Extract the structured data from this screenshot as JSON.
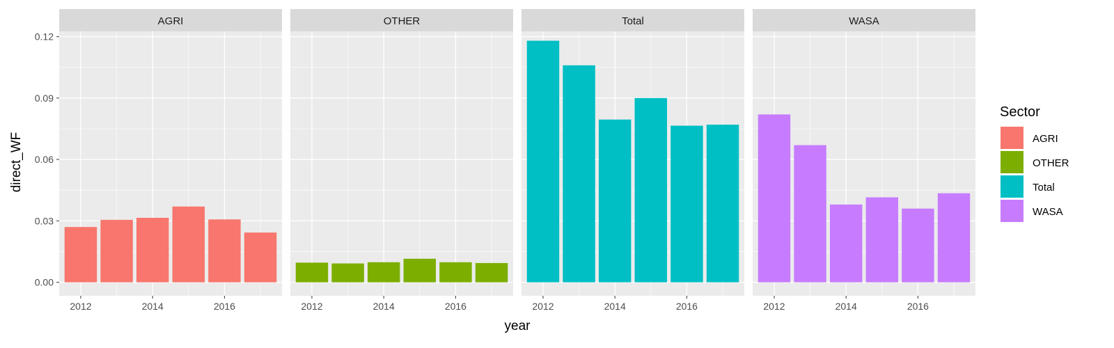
{
  "chart_data": {
    "type": "bar",
    "facet_by": "Sector",
    "xlabel": "year",
    "ylabel": "direct_WF",
    "x_tick_labels": [
      "2012",
      "2014",
      "2016"
    ],
    "y_tick_labels": [
      "0.00",
      "0.03",
      "0.06",
      "0.09",
      "0.12"
    ],
    "ylim": [
      -0.0066,
      0.1226
    ],
    "xlim": [
      2011.4,
      2017.6
    ],
    "grid": true,
    "legend": {
      "title": "Sector",
      "position": "right",
      "entries": [
        "AGRI",
        "OTHER",
        "Total",
        "WASA"
      ]
    },
    "categories": [
      2012,
      2013,
      2014,
      2015,
      2016,
      2017
    ],
    "series": [
      {
        "name": "AGRI",
        "color": "#F8766D",
        "values": [
          0.027,
          0.0305,
          0.0315,
          0.037,
          0.0307,
          0.0243
        ]
      },
      {
        "name": "OTHER",
        "color": "#7CAE00",
        "values": [
          0.0096,
          0.0092,
          0.0098,
          0.0115,
          0.0098,
          0.0094
        ]
      },
      {
        "name": "Total",
        "color": "#00BFC4",
        "values": [
          0.118,
          0.106,
          0.0795,
          0.09,
          0.0765,
          0.077
        ]
      },
      {
        "name": "WASA",
        "color": "#C77CFF",
        "values": [
          0.082,
          0.067,
          0.038,
          0.0415,
          0.036,
          0.0435
        ]
      }
    ]
  }
}
